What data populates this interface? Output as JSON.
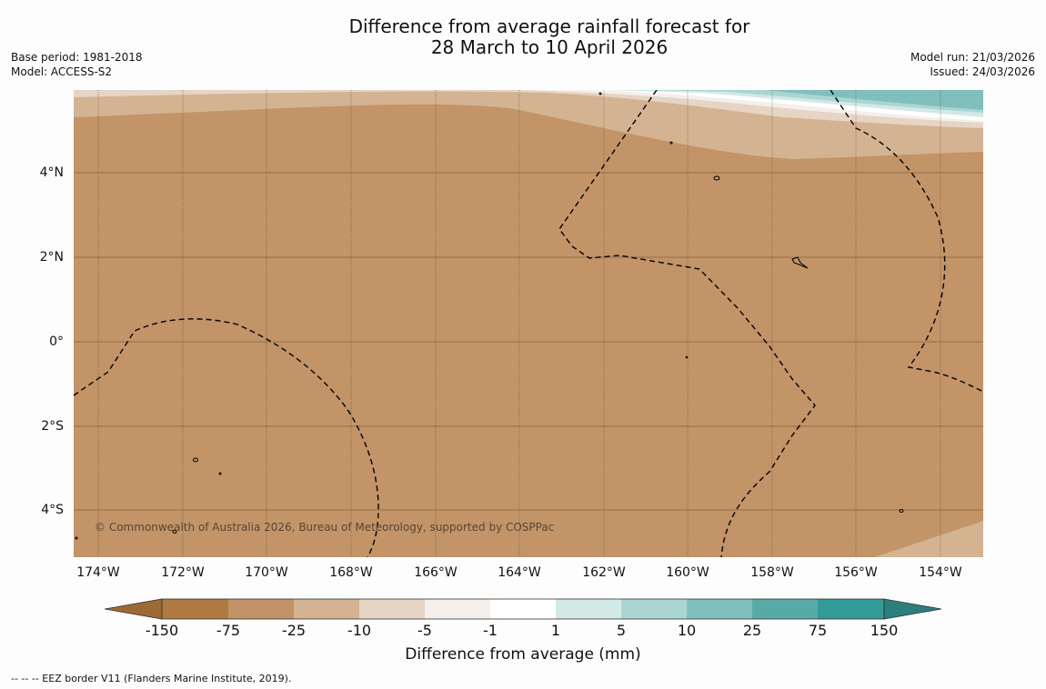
{
  "title": {
    "line1": "Difference from average rainfall forecast for",
    "line2": "28 March to 10 April 2026"
  },
  "meta_left": {
    "base_period": "Base period: 1981-2018",
    "model": "Model: ACCESS-S2"
  },
  "meta_right": {
    "model_run": "Model run: 21/03/2026",
    "issued": "Issued: 24/03/2026"
  },
  "map": {
    "lat_labels": [
      "4°N",
      "2°N",
      "0°",
      "2°S",
      "4°S"
    ],
    "lon_labels": [
      "174°W",
      "172°W",
      "170°W",
      "168°W",
      "166°W",
      "164°W",
      "162°W",
      "160°W",
      "158°W",
      "156°W",
      "154°W"
    ],
    "copyright": "© Commonwealth of Australia 2026, Bureau of Meteorology, supported by COSPPac"
  },
  "colorbar": {
    "ticks": [
      "-150",
      "-75",
      "-25",
      "-10",
      "-5",
      "-1",
      "1",
      "5",
      "10",
      "25",
      "75",
      "150"
    ],
    "colors": [
      "#b07a44",
      "#c29368",
      "#d4b392",
      "#e6d4c4",
      "#f4efeb",
      "#ffffff",
      "#d2e9e6",
      "#aad5d2",
      "#80bfbc",
      "#58aaa7",
      "#329a97",
      "#2b7f7c"
    ],
    "title": "Difference from average (mm)"
  },
  "footer": "--  --  -- EEZ border V11 (Flanders Marine Institute, 2019)."
}
